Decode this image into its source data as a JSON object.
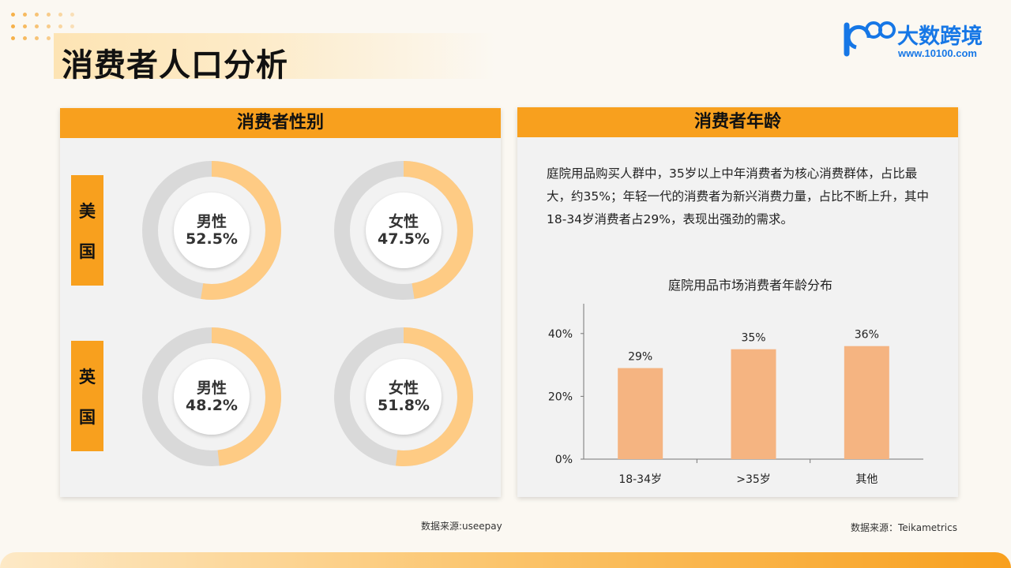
{
  "page": {
    "title": "消费者人口分析"
  },
  "logo": {
    "name": "大数跨境",
    "url": "www.10100.com",
    "mark": "10"
  },
  "gender_panel": {
    "title": "消费者性别",
    "countries": [
      {
        "name": "美国",
        "chars": [
          "美",
          "国"
        ],
        "male": {
          "label": "男性",
          "percent": "52.5%",
          "value": 52.5
        },
        "female": {
          "label": "女性",
          "percent": "47.5%",
          "value": 47.5
        }
      },
      {
        "name": "英国",
        "chars": [
          "英",
          "国"
        ],
        "male": {
          "label": "男性",
          "percent": "48.2%",
          "value": 48.2
        },
        "female": {
          "label": "女性",
          "percent": "51.8%",
          "value": 51.8
        }
      }
    ],
    "source": "数据来源:useepay"
  },
  "age_panel": {
    "title": "消费者年龄",
    "description": "庭院用品购买人群中，35岁以上中年消费者为核心消费群体，占比最大，约35%；年轻一代的消费者为新兴消费力量，占比不断上升，其中18-34岁消费者占29%，表现出强劲的需求。",
    "source": "数据来源：Teikametrics"
  },
  "chart_data": {
    "type": "bar",
    "title": "庭院用品市场消费者年龄分布",
    "categories": [
      "18-34岁",
      ">35岁",
      "其他"
    ],
    "values": [
      29,
      35,
      36
    ],
    "value_labels": [
      "29%",
      "35%",
      "36%"
    ],
    "yticks": [
      "0%",
      "20%",
      "40%"
    ],
    "ylim": [
      0,
      50
    ],
    "xlabel": "",
    "ylabel": "",
    "grid": false,
    "bar_color": "#f5b481"
  },
  "colors": {
    "accent": "#f8a01e",
    "ring_fill": "#fecb84",
    "ring_track": "#d9d9d9",
    "bar": "#f5b481"
  }
}
